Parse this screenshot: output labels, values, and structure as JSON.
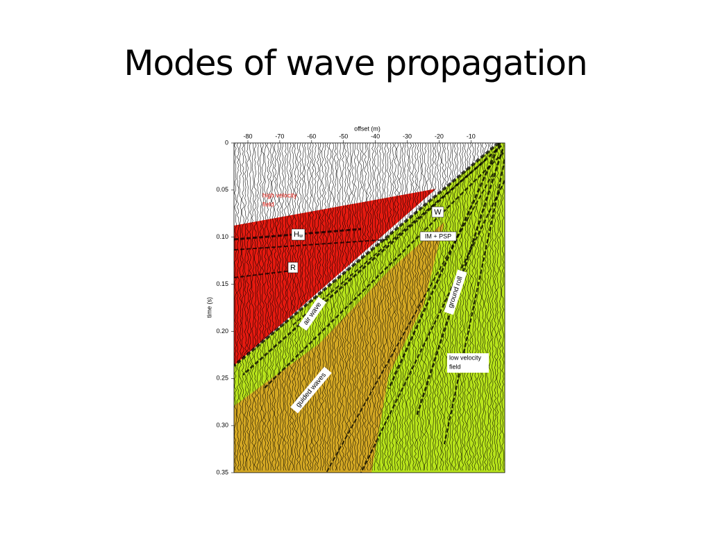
{
  "title": "Modes of wave propagation",
  "figure": {
    "x_label": "offset (m)",
    "x_ticks": [
      "-80",
      "-70",
      "-60",
      "-50",
      "-40",
      "-30",
      "-20",
      "-10"
    ],
    "y_label": "time (s)",
    "y_ticks": [
      "0",
      "0.05",
      "0.10",
      "0.15",
      "0.20",
      "0.25",
      "0.30",
      "0.35"
    ],
    "annotations": {
      "high_velocity": [
        "high velocity",
        "field"
      ],
      "hw": [
        "H",
        "w"
      ],
      "r": "R",
      "w": "W",
      "im_psp": "IM + PSP",
      "air_wave": "air wave",
      "ground_roll": "ground roll",
      "guided_waves": "guided waves",
      "low_velocity": [
        "low velocity",
        "field"
      ]
    }
  }
}
